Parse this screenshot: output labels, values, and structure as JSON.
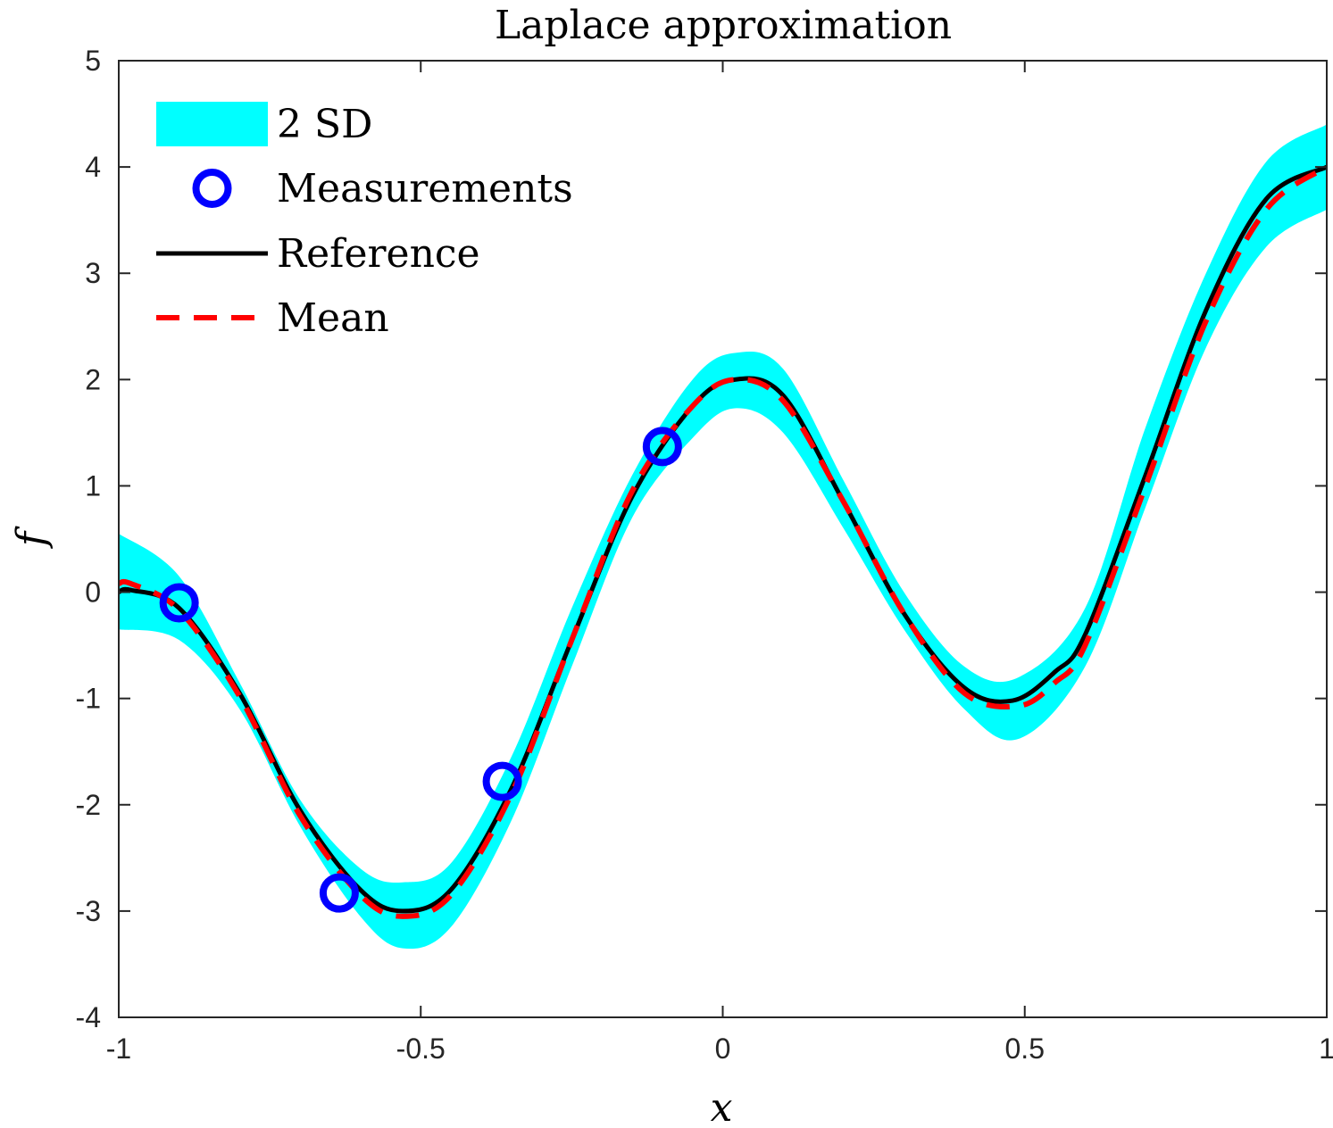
{
  "chart_data": {
    "type": "line",
    "title": "Laplace approximation",
    "xlabel": "x",
    "ylabel": "f",
    "xlim": [
      -1,
      1
    ],
    "ylim": [
      -4,
      5
    ],
    "xticks": [
      -1,
      -0.5,
      0,
      0.5,
      1
    ],
    "xtick_labels": [
      "-1",
      "-0.5",
      "0",
      "0.5",
      "1"
    ],
    "yticks": [
      -4,
      -3,
      -2,
      -1,
      0,
      1,
      2,
      3,
      4,
      5
    ],
    "ytick_labels": [
      "-4",
      "-3",
      "-2",
      "-1",
      "0",
      "1",
      "2",
      "3",
      "4",
      "5"
    ],
    "grid": false,
    "legend_position": "top-left",
    "legend": [
      "2 SD",
      "Measurements",
      "Reference",
      "Mean"
    ],
    "colors": {
      "band": "#00FFFF",
      "measurements": "#0000FF",
      "reference": "#000000",
      "mean": "#FF0000"
    },
    "series": [
      {
        "name": "2 SD",
        "kind": "band",
        "x": [
          -1,
          -0.9,
          -0.8,
          -0.7,
          -0.6,
          -0.53,
          -0.45,
          -0.35,
          -0.25,
          -0.15,
          -0.05,
          0.02,
          0.1,
          0.2,
          0.3,
          0.4,
          0.49,
          0.6,
          0.7,
          0.8,
          0.9,
          1
        ],
        "lower": [
          -0.35,
          -0.45,
          -1.1,
          -2.2,
          -3.05,
          -3.35,
          -3.15,
          -2.15,
          -0.7,
          0.7,
          1.45,
          1.73,
          1.5,
          0.6,
          -0.35,
          -1.1,
          -1.38,
          -0.7,
          0.8,
          2.3,
          3.25,
          3.6
        ],
        "upper": [
          0.55,
          0.15,
          -0.85,
          -1.95,
          -2.6,
          -2.73,
          -2.55,
          -1.55,
          -0.15,
          1.1,
          2.0,
          2.25,
          2.1,
          1.05,
          0.0,
          -0.7,
          -0.8,
          -0.15,
          1.55,
          3.0,
          4.05,
          4.4
        ]
      },
      {
        "name": "Measurements",
        "kind": "scatter",
        "x": [
          -0.9,
          -0.635,
          -0.365,
          -0.1
        ],
        "y": [
          -0.1,
          -2.83,
          -1.78,
          1.37
        ]
      },
      {
        "name": "Reference",
        "kind": "line",
        "x": [
          -1,
          -0.98,
          -0.9,
          -0.8,
          -0.7,
          -0.6,
          -0.53,
          -0.45,
          -0.35,
          -0.25,
          -0.15,
          -0.05,
          0.02,
          0.1,
          0.2,
          0.3,
          0.4,
          0.48,
          0.55,
          0.6,
          0.7,
          0.8,
          0.9,
          1
        ],
        "y": [
          0.0,
          0.02,
          -0.15,
          -0.95,
          -2.05,
          -2.8,
          -3.0,
          -2.8,
          -1.85,
          -0.45,
          0.9,
          1.75,
          2.0,
          1.85,
          0.85,
          -0.2,
          -0.9,
          -1.02,
          -0.75,
          -0.4,
          1.1,
          2.65,
          3.7,
          4.0
        ]
      },
      {
        "name": "Mean",
        "kind": "line",
        "x": [
          -1,
          -0.98,
          -0.9,
          -0.8,
          -0.7,
          -0.6,
          -0.53,
          -0.45,
          -0.35,
          -0.25,
          -0.15,
          -0.05,
          0.02,
          0.1,
          0.2,
          0.3,
          0.4,
          0.49,
          0.55,
          0.6,
          0.7,
          0.8,
          0.9,
          1
        ],
        "y": [
          0.08,
          0.08,
          -0.17,
          -0.98,
          -2.1,
          -2.85,
          -3.05,
          -2.85,
          -1.9,
          -0.45,
          0.95,
          1.75,
          2.0,
          1.8,
          0.85,
          -0.2,
          -0.95,
          -1.07,
          -0.85,
          -0.5,
          1.0,
          2.55,
          3.6,
          4.0
        ]
      }
    ]
  }
}
